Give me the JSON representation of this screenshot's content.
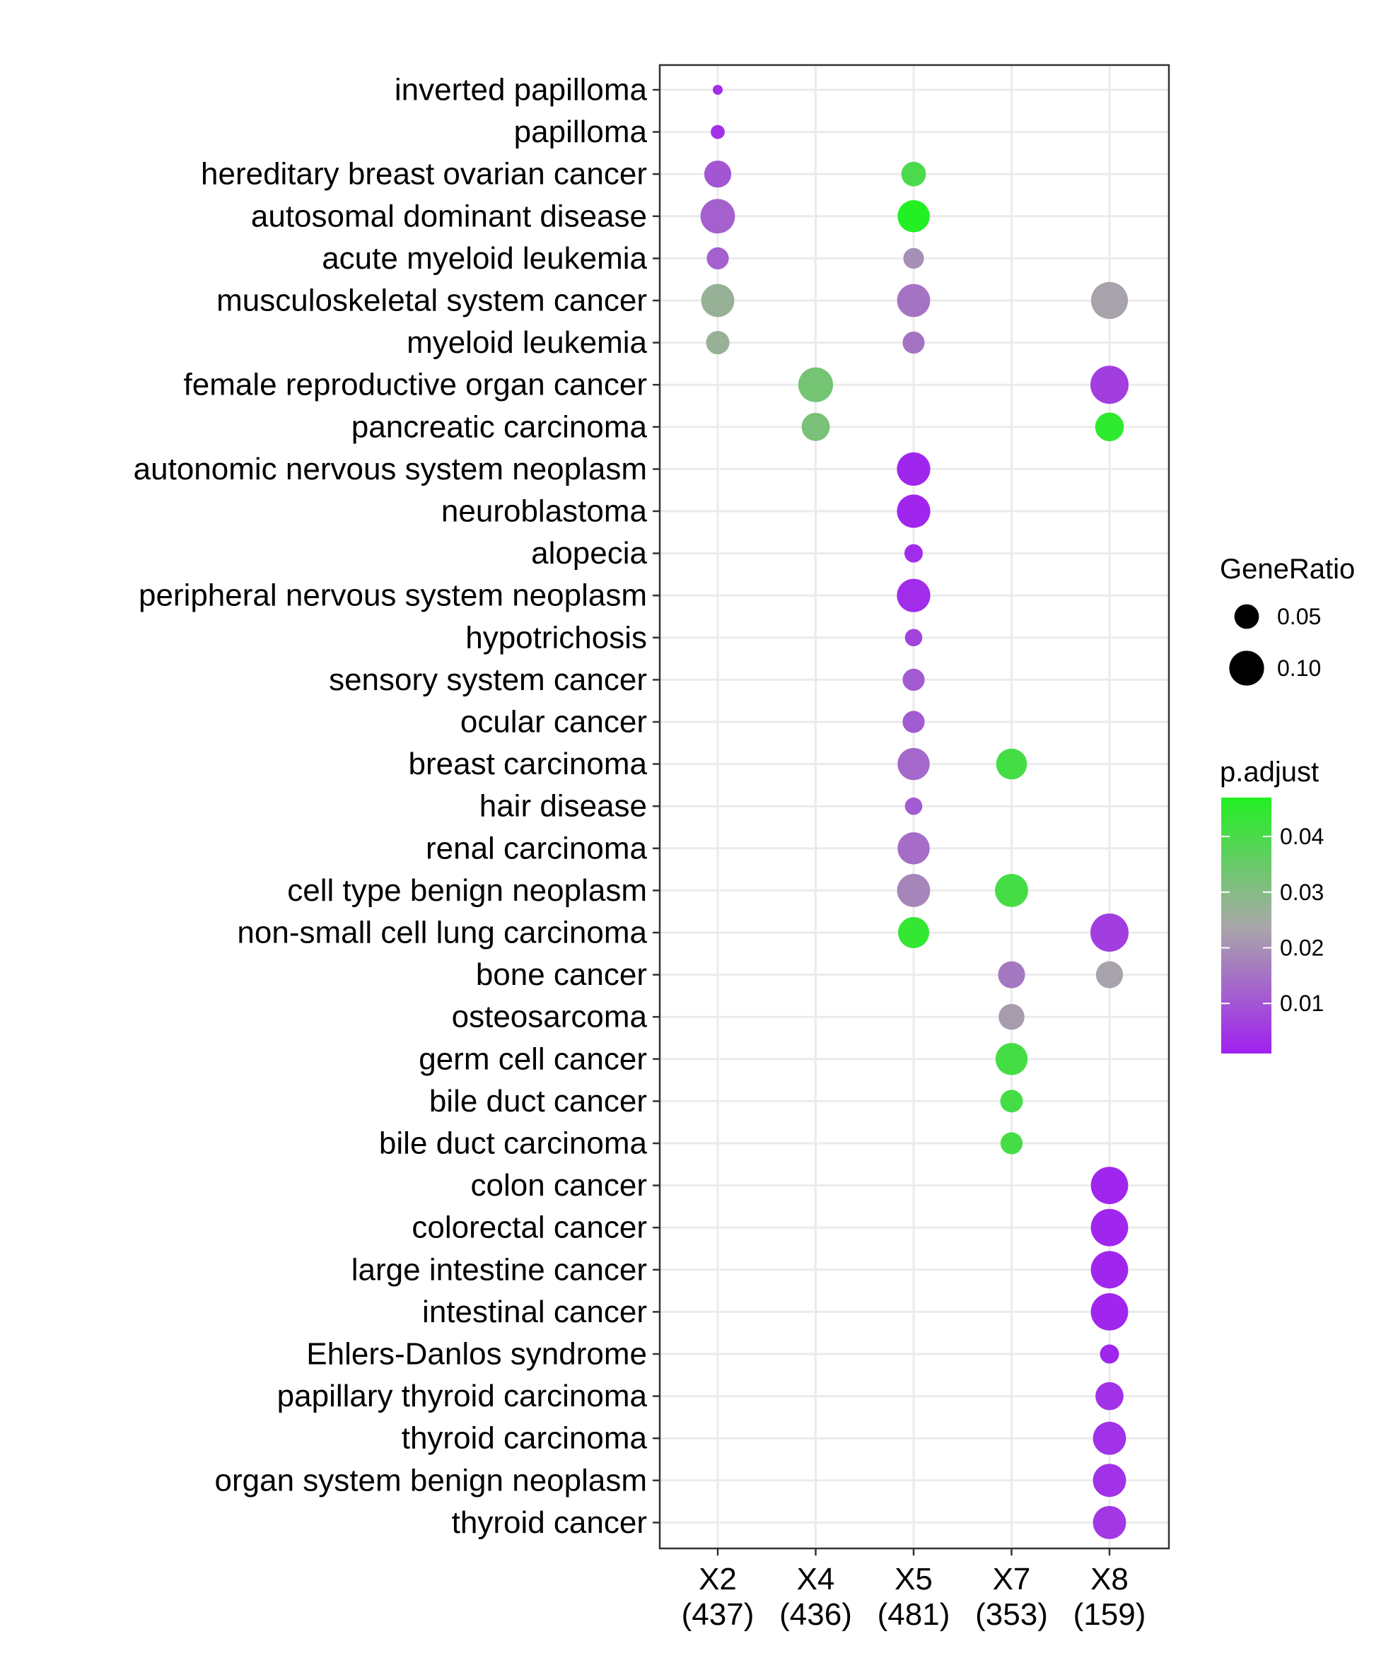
{
  "chart_data": {
    "type": "scatter",
    "title": "",
    "xlabel": "",
    "ylabel": "",
    "grid": true,
    "legend_placement": "right",
    "x_categories": [
      "X2\n(437)",
      "X4\n(436)",
      "X5\n(481)",
      "X7\n(353)",
      "X8\n(159)"
    ],
    "y_categories": [
      "inverted papilloma",
      "papilloma",
      "hereditary breast ovarian cancer",
      "autosomal dominant disease",
      "acute myeloid leukemia",
      "musculoskeletal system cancer",
      "myeloid leukemia",
      "female reproductive organ cancer",
      "pancreatic carcinoma",
      "autonomic nervous system neoplasm",
      "neuroblastoma",
      "alopecia",
      "peripheral nervous system neoplasm",
      "hypotrichosis",
      "sensory system cancer",
      "ocular cancer",
      "breast carcinoma",
      "hair disease",
      "renal carcinoma",
      "cell type benign neoplasm",
      "non-small cell lung carcinoma",
      "bone cancer",
      "osteosarcoma",
      "germ cell cancer",
      "bile duct cancer",
      "bile duct carcinoma",
      "colon cancer",
      "colorectal cancer",
      "large intestine cancer",
      "intestinal cancer",
      "Ehlers-Danlos syndrome",
      "papillary thyroid carcinoma",
      "thyroid carcinoma",
      "organ system benign neoplasm",
      "thyroid cancer"
    ],
    "points": [
      {
        "x": "X2\n(437)",
        "y": "inverted papilloma",
        "gene_ratio": 0.008,
        "p_adjust": 0.003
      },
      {
        "x": "X2\n(437)",
        "y": "papilloma",
        "gene_ratio": 0.016,
        "p_adjust": 0.004
      },
      {
        "x": "X2\n(437)",
        "y": "hereditary breast ovarian cancer",
        "gene_ratio": 0.06,
        "p_adjust": 0.01
      },
      {
        "x": "X2\n(437)",
        "y": "autosomal dominant disease",
        "gene_ratio": 0.098,
        "p_adjust": 0.012
      },
      {
        "x": "X2\n(437)",
        "y": "acute myeloid leukemia",
        "gene_ratio": 0.04,
        "p_adjust": 0.012
      },
      {
        "x": "X2\n(437)",
        "y": "musculoskeletal system cancer",
        "gene_ratio": 0.09,
        "p_adjust": 0.027
      },
      {
        "x": "X2\n(437)",
        "y": "myeloid leukemia",
        "gene_ratio": 0.045,
        "p_adjust": 0.027
      },
      {
        "x": "X4\n(436)",
        "y": "female reproductive organ cancer",
        "gene_ratio": 0.1,
        "p_adjust": 0.033
      },
      {
        "x": "X4\n(436)",
        "y": "pancreatic carcinoma",
        "gene_ratio": 0.065,
        "p_adjust": 0.032
      },
      {
        "x": "X5\n(481)",
        "y": "hereditary breast ovarian cancer",
        "gene_ratio": 0.05,
        "p_adjust": 0.04
      },
      {
        "x": "X5\n(481)",
        "y": "autosomal dominant disease",
        "gene_ratio": 0.085,
        "p_adjust": 0.047
      },
      {
        "x": "X5\n(481)",
        "y": "acute myeloid leukemia",
        "gene_ratio": 0.035,
        "p_adjust": 0.02
      },
      {
        "x": "X5\n(481)",
        "y": "musculoskeletal system cancer",
        "gene_ratio": 0.09,
        "p_adjust": 0.015
      },
      {
        "x": "X5\n(481)",
        "y": "myeloid leukemia",
        "gene_ratio": 0.04,
        "p_adjust": 0.015
      },
      {
        "x": "X5\n(481)",
        "y": "autonomic nervous system neoplasm",
        "gene_ratio": 0.092,
        "p_adjust": 0.002
      },
      {
        "x": "X5\n(481)",
        "y": "neuroblastoma",
        "gene_ratio": 0.092,
        "p_adjust": 0.002
      },
      {
        "x": "X5\n(481)",
        "y": "alopecia",
        "gene_ratio": 0.028,
        "p_adjust": 0.003
      },
      {
        "x": "X5\n(481)",
        "y": "peripheral nervous system neoplasm",
        "gene_ratio": 0.092,
        "p_adjust": 0.003
      },
      {
        "x": "X5\n(481)",
        "y": "hypotrichosis",
        "gene_ratio": 0.025,
        "p_adjust": 0.007
      },
      {
        "x": "X5\n(481)",
        "y": "sensory system cancer",
        "gene_ratio": 0.04,
        "p_adjust": 0.011
      },
      {
        "x": "X5\n(481)",
        "y": "ocular cancer",
        "gene_ratio": 0.04,
        "p_adjust": 0.011
      },
      {
        "x": "X5\n(481)",
        "y": "breast carcinoma",
        "gene_ratio": 0.085,
        "p_adjust": 0.013
      },
      {
        "x": "X5\n(481)",
        "y": "hair disease",
        "gene_ratio": 0.025,
        "p_adjust": 0.011
      },
      {
        "x": "X5\n(481)",
        "y": "renal carcinoma",
        "gene_ratio": 0.085,
        "p_adjust": 0.014
      },
      {
        "x": "X5\n(481)",
        "y": "cell type benign neoplasm",
        "gene_ratio": 0.09,
        "p_adjust": 0.018
      },
      {
        "x": "X5\n(481)",
        "y": "non-small cell lung carcinoma",
        "gene_ratio": 0.08,
        "p_adjust": 0.044
      },
      {
        "x": "X7\n(353)",
        "y": "breast carcinoma",
        "gene_ratio": 0.078,
        "p_adjust": 0.041
      },
      {
        "x": "X7\n(353)",
        "y": "cell type benign neoplasm",
        "gene_ratio": 0.09,
        "p_adjust": 0.041
      },
      {
        "x": "X7\n(353)",
        "y": "bone cancer",
        "gene_ratio": 0.06,
        "p_adjust": 0.016
      },
      {
        "x": "X7\n(353)",
        "y": "osteosarcoma",
        "gene_ratio": 0.055,
        "p_adjust": 0.022
      },
      {
        "x": "X7\n(353)",
        "y": "germ cell cancer",
        "gene_ratio": 0.085,
        "p_adjust": 0.041
      },
      {
        "x": "X7\n(353)",
        "y": "bile duct cancer",
        "gene_ratio": 0.042,
        "p_adjust": 0.041
      },
      {
        "x": "X7\n(353)",
        "y": "bile duct carcinoma",
        "gene_ratio": 0.04,
        "p_adjust": 0.041
      },
      {
        "x": "X8\n(159)",
        "y": "musculoskeletal system cancer",
        "gene_ratio": 0.112,
        "p_adjust": 0.023
      },
      {
        "x": "X8\n(159)",
        "y": "female reproductive organ cancer",
        "gene_ratio": 0.12,
        "p_adjust": 0.006
      },
      {
        "x": "X8\n(159)",
        "y": "pancreatic carcinoma",
        "gene_ratio": 0.068,
        "p_adjust": 0.045
      },
      {
        "x": "X8\n(159)",
        "y": "non-small cell lung carcinoma",
        "gene_ratio": 0.12,
        "p_adjust": 0.006
      },
      {
        "x": "X8\n(159)",
        "y": "bone cancer",
        "gene_ratio": 0.06,
        "p_adjust": 0.023
      },
      {
        "x": "X8\n(159)",
        "y": "colon cancer",
        "gene_ratio": 0.115,
        "p_adjust": 0.002
      },
      {
        "x": "X8\n(159)",
        "y": "colorectal cancer",
        "gene_ratio": 0.115,
        "p_adjust": 0.002
      },
      {
        "x": "X8\n(159)",
        "y": "large intestine cancer",
        "gene_ratio": 0.115,
        "p_adjust": 0.002
      },
      {
        "x": "X8\n(159)",
        "y": "intestinal cancer",
        "gene_ratio": 0.115,
        "p_adjust": 0.002
      },
      {
        "x": "X8\n(159)",
        "y": "Ehlers-Danlos syndrome",
        "gene_ratio": 0.03,
        "p_adjust": 0.002
      },
      {
        "x": "X8\n(159)",
        "y": "papillary thyroid carcinoma",
        "gene_ratio": 0.065,
        "p_adjust": 0.004
      },
      {
        "x": "X8\n(159)",
        "y": "thyroid carcinoma",
        "gene_ratio": 0.09,
        "p_adjust": 0.004
      },
      {
        "x": "X8\n(159)",
        "y": "organ system benign neoplasm",
        "gene_ratio": 0.09,
        "p_adjust": 0.004
      },
      {
        "x": "X8\n(159)",
        "y": "thyroid cancer",
        "gene_ratio": 0.09,
        "p_adjust": 0.005
      }
    ],
    "size_legend": {
      "title": "GeneRatio",
      "breaks": [
        0.05,
        0.1
      ],
      "labels": [
        "0.05",
        "0.10"
      ]
    },
    "color_legend": {
      "title": "p.adjust",
      "low_color": "#a020f0",
      "mid_color": "#a8a8a8",
      "high_color": "#22f022",
      "range": [
        0.001,
        0.047
      ],
      "breaks": [
        0.01,
        0.02,
        0.03,
        0.04
      ],
      "labels": [
        "0.01",
        "0.02",
        "0.03",
        "0.04"
      ]
    }
  }
}
